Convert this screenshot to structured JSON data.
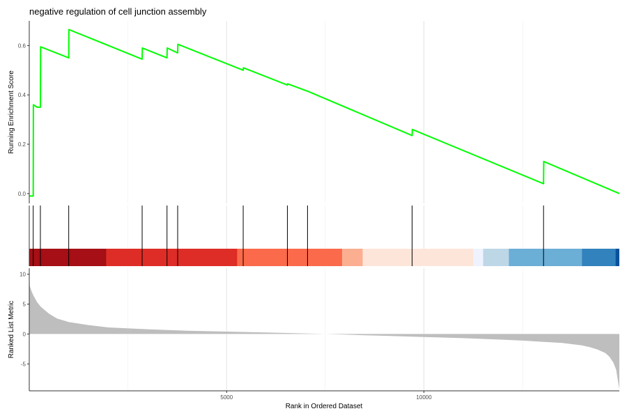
{
  "chart_data": {
    "type": "line",
    "title": "negative regulation of cell junction assembly",
    "xlabel": "Rank in Ordered Dataset",
    "x_ticks": [
      5000,
      10000
    ],
    "xlim": [
      0,
      14950
    ],
    "grid": "vertical only",
    "panels": {
      "enrichment": {
        "ylabel": "Running Enrichment Score",
        "ylim": [
          -0.04,
          0.7
        ],
        "y_ticks": [
          0.0,
          0.2,
          0.4,
          0.6
        ],
        "line_color": "#00FF00",
        "series": [
          {
            "x": [
              0,
              100,
              105,
              200,
              282,
              287,
              1000,
              1005,
              2860,
              2865,
              3490,
              3495,
              3760,
              3765,
              5420,
              5425,
              6540,
              6545,
              7050,
              7055,
              9700,
              9705,
              13030,
              13035,
              14950
            ],
            "y": [
              -0.01,
              -0.01,
              0.36,
              0.35,
              0.35,
              0.595,
              0.55,
              0.665,
              0.545,
              0.59,
              0.55,
              0.59,
              0.57,
              0.605,
              0.5,
              0.51,
              0.44,
              0.445,
              0.415,
              0.415,
              0.235,
              0.26,
              0.04,
              0.13,
              0.0
            ]
          }
        ]
      },
      "hits": {
        "positions": [
          100,
          282,
          1000,
          2860,
          3490,
          3760,
          5420,
          6540,
          7050,
          9700,
          13030
        ]
      },
      "rank_colorbar": {
        "segments": [
          {
            "x0": 0,
            "x1": 1950,
            "color": "#A50F15"
          },
          {
            "x0": 1950,
            "x1": 5270,
            "color": "#DE2D26"
          },
          {
            "x0": 5270,
            "x1": 7930,
            "color": "#FB6A4A"
          },
          {
            "x0": 7930,
            "x1": 8450,
            "color": "#FCAE91"
          },
          {
            "x0": 8450,
            "x1": 11250,
            "color": "#FEE5D9"
          },
          {
            "x0": 11250,
            "x1": 11500,
            "color": "#EFF3FF"
          },
          {
            "x0": 11500,
            "x1": 12150,
            "color": "#BDD7E7"
          },
          {
            "x0": 12150,
            "x1": 14000,
            "color": "#6BAED6"
          },
          {
            "x0": 14000,
            "x1": 14850,
            "color": "#3182BD"
          },
          {
            "x0": 14850,
            "x1": 14950,
            "color": "#08519C"
          }
        ]
      },
      "ranked_metric": {
        "ylabel": "Ranked List Metric",
        "ylim": [
          -9.5,
          11
        ],
        "y_ticks": [
          -5,
          0,
          5,
          10
        ],
        "fill_color": "#BEBEBE",
        "series": [
          {
            "x": [
              0,
              15,
              50,
              100,
              200,
              300,
              500,
              700,
              1000,
              1500,
              2000,
              3000,
              4000,
              5000,
              6000,
              7000,
              7500,
              8000,
              8500,
              9000,
              10000,
              11000,
              12000,
              12500,
              13000,
              13500,
              14000,
              14200,
              14400,
              14600,
              14700,
              14800,
              14870,
              14910,
              14950
            ],
            "y": [
              10.5,
              8.0,
              7.3,
              6.5,
              5.3,
              4.5,
              3.4,
              2.6,
              2.0,
              1.5,
              1.1,
              0.8,
              0.55,
              0.4,
              0.25,
              0.1,
              0.0,
              -0.1,
              -0.2,
              -0.3,
              -0.5,
              -0.7,
              -0.95,
              -1.1,
              -1.3,
              -1.5,
              -1.9,
              -2.2,
              -2.6,
              -3.2,
              -3.8,
              -4.8,
              -6.0,
              -7.6,
              -9.2
            ]
          }
        ]
      }
    }
  }
}
